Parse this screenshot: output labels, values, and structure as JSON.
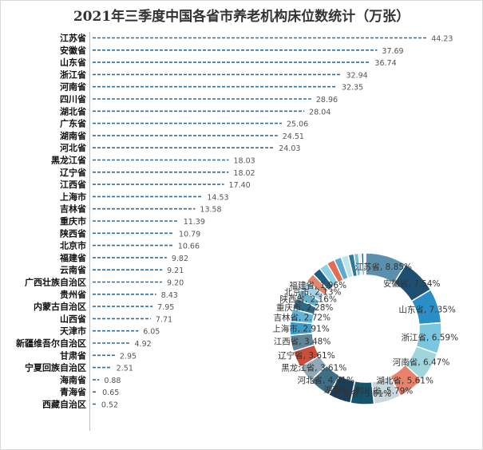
{
  "chart_data": [
    {
      "type": "bar",
      "orientation": "horizontal",
      "style": "dashed-line-bars",
      "title": "2021年三季度中国各省市养老机构床位数统计（万张）",
      "categories": [
        "江苏省",
        "安徽省",
        "山东省",
        "浙江省",
        "河南省",
        "四川省",
        "湖北省",
        "广东省",
        "湖南省",
        "河北省",
        "黑龙江省",
        "辽宁省",
        "江西省",
        "上海市",
        "吉林省",
        "重庆市",
        "陕西省",
        "北京市",
        "福建省",
        "云南省",
        "广西壮族自治区",
        "贵州省",
        "内蒙古自治区",
        "山西省",
        "天津市",
        "新疆维吾尔自治区",
        "甘肃省",
        "宁夏回族自治区",
        "海南省",
        "青海省",
        "西藏自治区"
      ],
      "values": [
        44.23,
        37.69,
        36.74,
        32.94,
        32.35,
        28.96,
        28.04,
        25.06,
        24.51,
        24.03,
        18.03,
        18.02,
        17.4,
        14.53,
        13.58,
        11.39,
        10.79,
        10.66,
        9.82,
        9.21,
        9.2,
        8.43,
        7.95,
        7.71,
        6.05,
        4.92,
        2.95,
        2.51,
        0.88,
        0.65,
        0.52
      ],
      "value_labels": [
        "44.23",
        "37.69",
        "36.74",
        "32.94",
        "32.35",
        "28.96",
        "28.04",
        "25.06",
        "24.51",
        "24.03",
        "18.03",
        "18.02",
        "17.40",
        "14.53",
        "13.58",
        "11.39",
        "10.79",
        "10.66",
        "9.82",
        "9.21",
        "9.20",
        "8.43",
        "7.95",
        "7.71",
        "6.05",
        "4.92",
        "2.95",
        "2.51",
        "0.88",
        "0.65",
        "0.52"
      ],
      "xlim": [
        0,
        46
      ],
      "grid": false,
      "bar_color": "#2e6e9e"
    },
    {
      "type": "pie",
      "variant": "donut",
      "order": "clockwise-from-top",
      "categories": [
        "江苏省",
        "安徽省",
        "山东省",
        "浙江省",
        "河南省",
        "湖北省",
        "四川省",
        "广东省",
        "湖南省",
        "河北省",
        "黑龙江省",
        "辽宁省",
        "江西省",
        "上海市",
        "吉林省",
        "重庆市",
        "陕西省",
        "北京市",
        "福建省",
        "云南省",
        "广西壮族自治区",
        "贵州省",
        "内蒙古自治区",
        "山西省",
        "天津市",
        "新疆维吾尔自治区",
        "甘肃省",
        "宁夏回族自治区",
        "海南省",
        "青海省",
        "西藏自治区"
      ],
      "values": [
        44.23,
        37.69,
        36.74,
        32.94,
        32.35,
        28.04,
        28.96,
        25.06,
        24.51,
        24.03,
        18.03,
        18.02,
        17.4,
        14.53,
        13.58,
        11.39,
        10.79,
        10.66,
        9.82,
        9.21,
        9.2,
        8.43,
        7.95,
        7.71,
        6.05,
        4.92,
        2.95,
        2.51,
        0.88,
        0.65,
        0.52
      ],
      "slice_labels": [
        "江苏省, 8.85%",
        "安徽省, 7.54%",
        "山东省, 7.35%",
        "浙江省, 6.59%",
        "河南省, 6.47%",
        "湖北省, 5.61%",
        "四川省, 5.79%",
        "广东省, 5.01%",
        "湖南省, 4.",
        "河北省, 4.81%",
        "黑龙江省, 3.61%",
        "辽宁省, 3.61%",
        "江西省, 3.48%",
        "上海市, 2.91%",
        "吉林省, 2.72%",
        "重庆市, 2.28%",
        "陕西省, 2.16%",
        "北京市, 2.13%",
        "福建省, 1.96%",
        "",
        "",
        "",
        "",
        "",
        "",
        "",
        "",
        "",
        "",
        "",
        ""
      ],
      "colors": [
        "#5b8fae",
        "#1f4f70",
        "#2a8fc7",
        "#78c6e0",
        "#9fd6dc",
        "#e8826a",
        "#c9d8de",
        "#14546e",
        "#1b3f5a",
        "#3f6f86",
        "#8fa9b8",
        "#c74f3c",
        "#5f8596",
        "#3a9cc9",
        "#61b3d8",
        "#2c6a8a",
        "#66b3cc",
        "#a8d1e4",
        "#e0886f",
        "#1e5d7d",
        "#8ed0e4",
        "#e26b53",
        "#5caad0",
        "#bfe3ee",
        "#2f7799",
        "#76bfd8",
        "#d9eef5",
        "#1a4a64",
        "#9cc9d9",
        "#4b8aa8",
        "#cce3ec"
      ]
    }
  ]
}
